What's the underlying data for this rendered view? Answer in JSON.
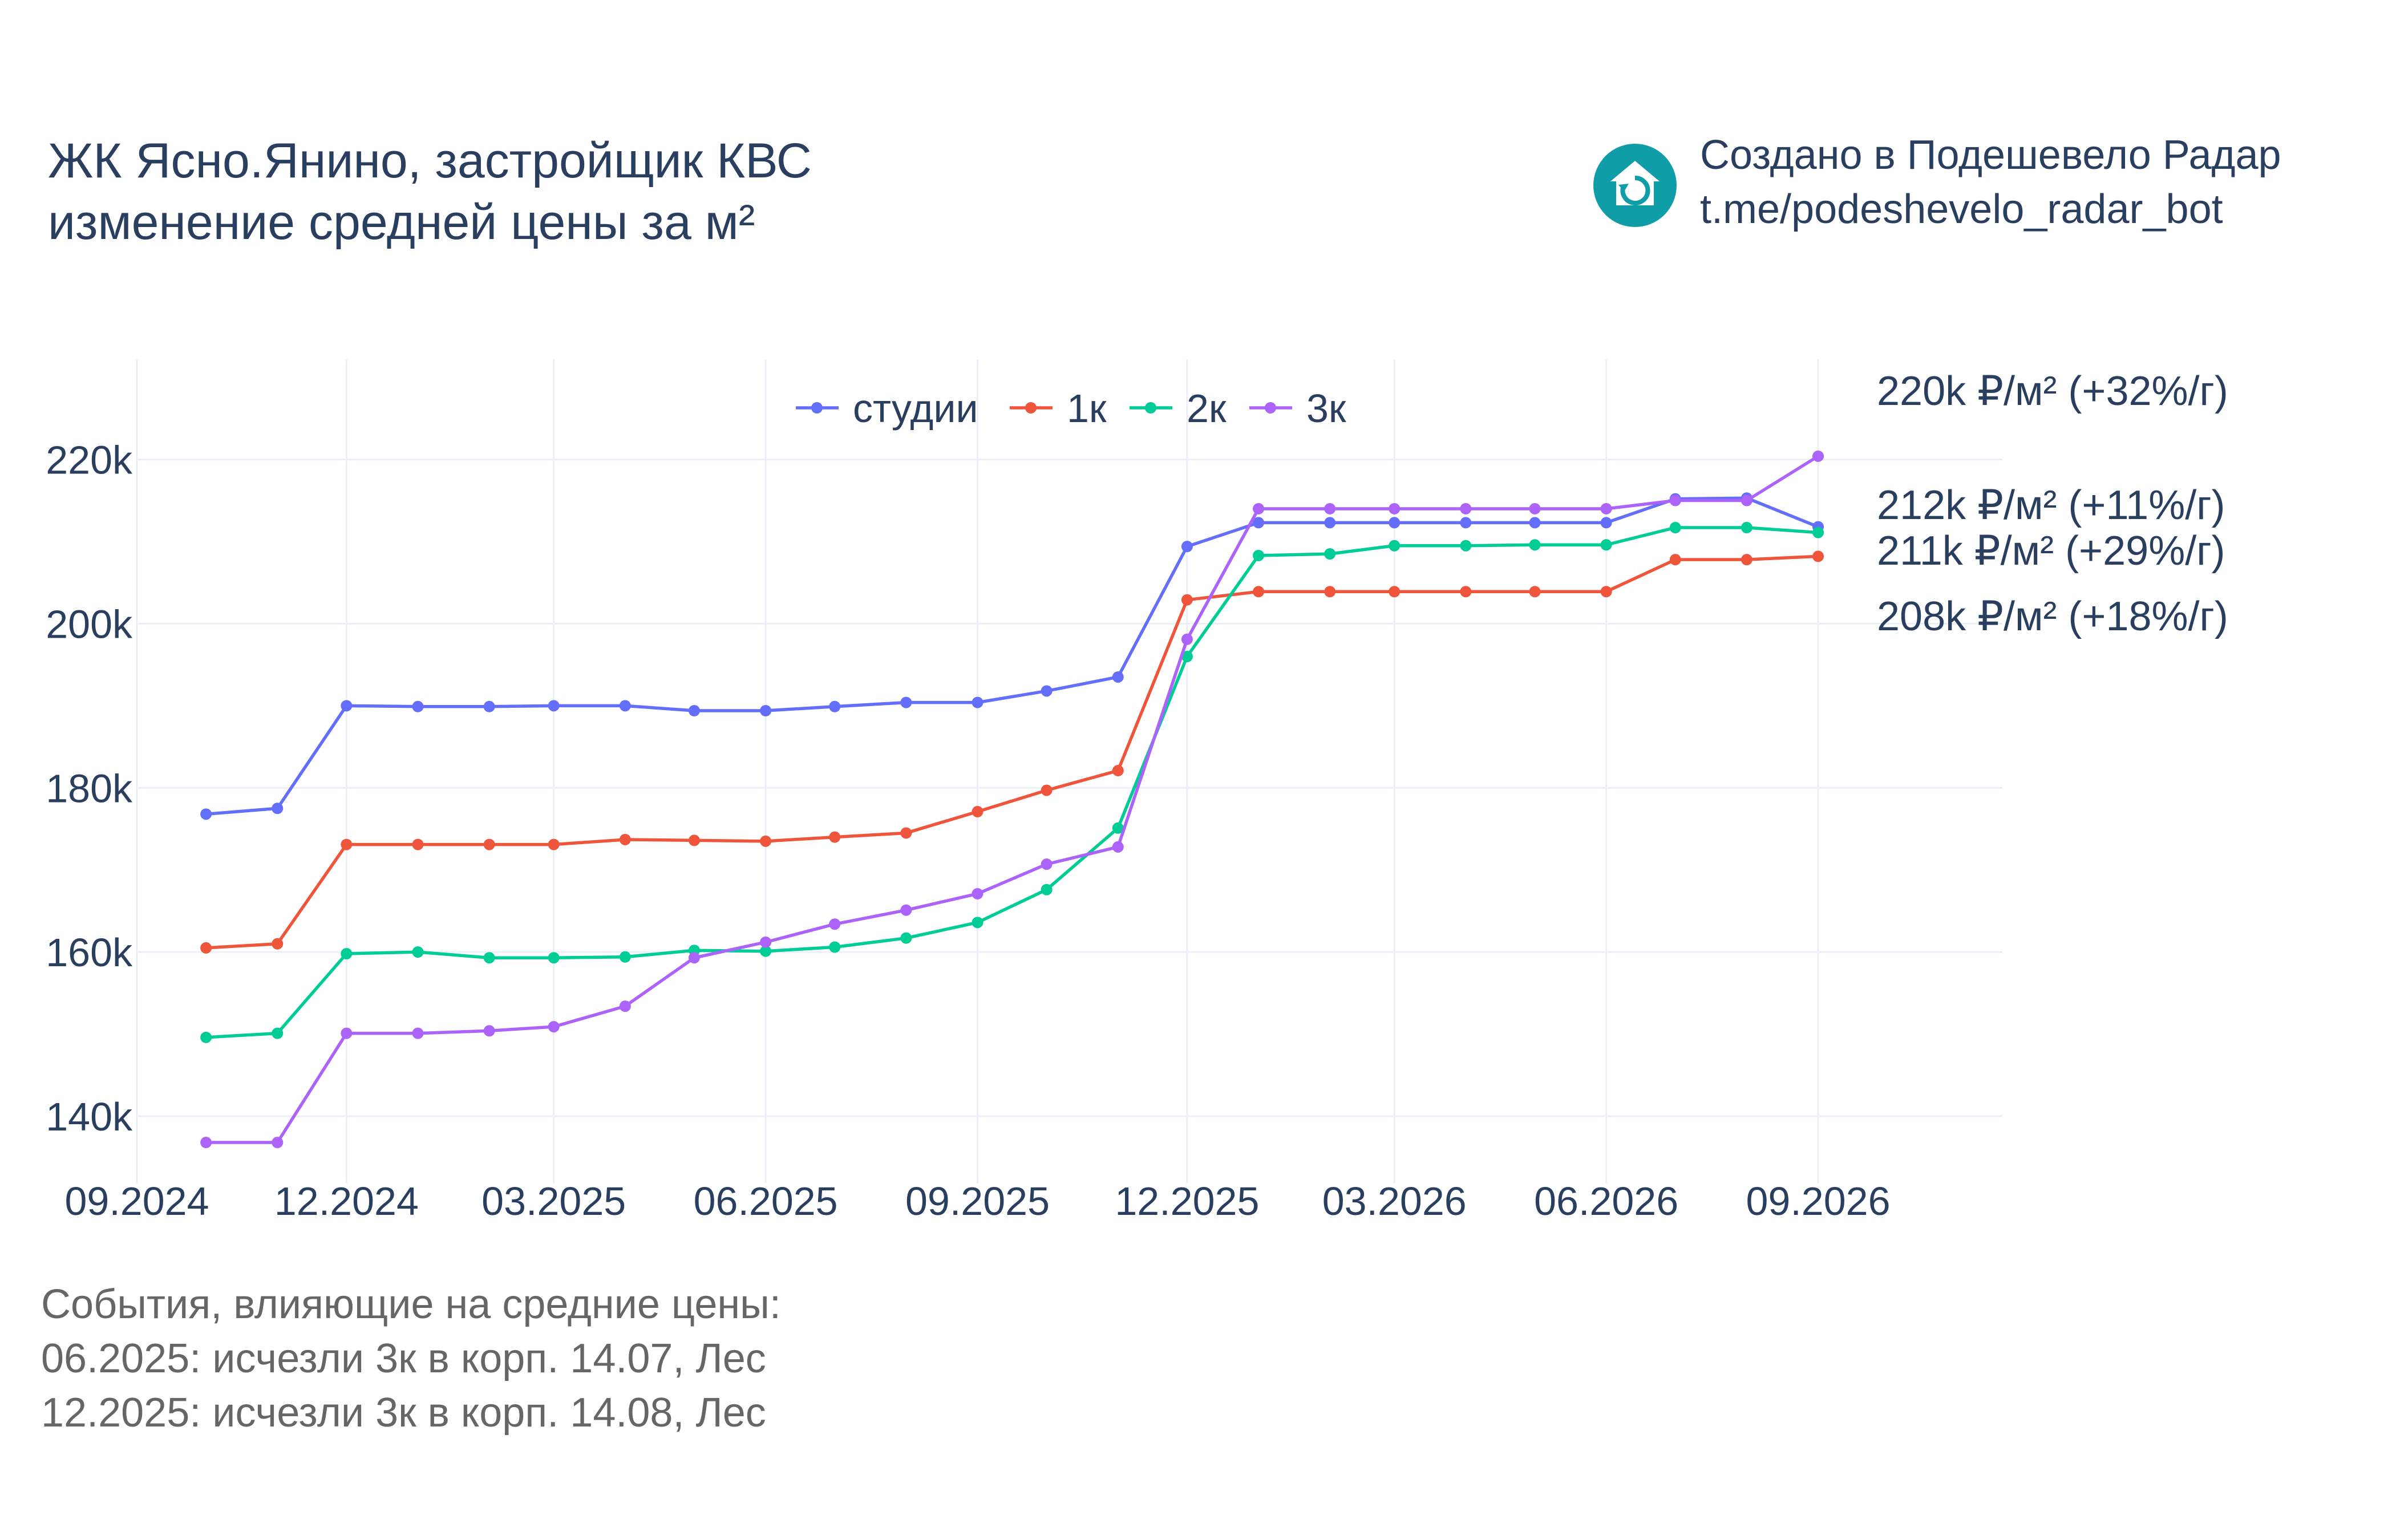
{
  "title": {
    "line1": "ЖК Ясно.Янино, застройщик КВС",
    "line2": "изменение средней цены за м²"
  },
  "credit": {
    "line1": "Создано в Подешевело Радар",
    "line2": "t.me/podeshevelo_radar_bot",
    "logo_icon": "house-refresh-icon",
    "logo_color": "#0f9ea8"
  },
  "notes": {
    "heading": "События, влияющие на средние цены:",
    "items": [
      "06.2025: исчезли 3к в корп. 14.07, Лес",
      "12.2025: исчезли 3к в корп. 14.08, Лес"
    ]
  },
  "chart_data": {
    "type": "line",
    "x": [
      "2024-10",
      "2024-11",
      "2024-12",
      "2025-01",
      "2025-02",
      "2025-03",
      "2025-04",
      "2025-05",
      "2025-06",
      "2025-07",
      "2025-08",
      "2025-09",
      "2025-10",
      "2025-11",
      "2025-12",
      "2026-01",
      "2026-02",
      "2026-03",
      "2026-04",
      "2026-05",
      "2026-06",
      "2026-07",
      "2026-08",
      "2026-09"
    ],
    "xticks": [
      "09.2024",
      "12.2024",
      "03.2025",
      "06.2025",
      "09.2025",
      "12.2025",
      "03.2026",
      "06.2026",
      "09.2026"
    ],
    "yticks": [
      "140k",
      "160k",
      "180k",
      "200k",
      "220k"
    ],
    "ylim": [
      131800,
      232200
    ],
    "grid": true,
    "legend": "top-center",
    "series": [
      {
        "name": "студии",
        "color": "#636efa",
        "values": [
          176800,
          177500,
          190000,
          189900,
          189900,
          190000,
          190000,
          189400,
          189400,
          189900,
          190400,
          190400,
          191800,
          193500,
          209400,
          212300,
          212300,
          212300,
          212300,
          212300,
          212300,
          215200,
          215300,
          211800
        ],
        "end_label": "212k ₽/м² (+11%/г)"
      },
      {
        "name": "1к",
        "color": "#ef553b",
        "values": [
          160500,
          161000,
          173100,
          173100,
          173100,
          173100,
          173700,
          173600,
          173500,
          174000,
          174500,
          177100,
          179700,
          182100,
          202900,
          203900,
          203900,
          203900,
          203900,
          203900,
          203900,
          207800,
          207800,
          208200
        ],
        "end_label": "208k ₽/м² (+18%/г)"
      },
      {
        "name": "2к",
        "color": "#00cc96",
        "values": [
          149600,
          150100,
          159800,
          160000,
          159300,
          159300,
          159400,
          160200,
          160100,
          160600,
          161700,
          163600,
          167600,
          175100,
          196000,
          208300,
          208500,
          209500,
          209500,
          209600,
          209600,
          211700,
          211700,
          211100
        ],
        "end_label": "211k ₽/м² (+29%/г)"
      },
      {
        "name": "3к",
        "color": "#ab63fa",
        "values": [
          136800,
          136800,
          150100,
          150100,
          150400,
          150900,
          153400,
          159300,
          161200,
          163400,
          165100,
          167100,
          170700,
          172800,
          198100,
          214000,
          214000,
          214000,
          214000,
          214000,
          214000,
          215000,
          215000,
          220400
        ],
        "end_label": "220k ₽/м² (+32%/г)"
      }
    ]
  }
}
